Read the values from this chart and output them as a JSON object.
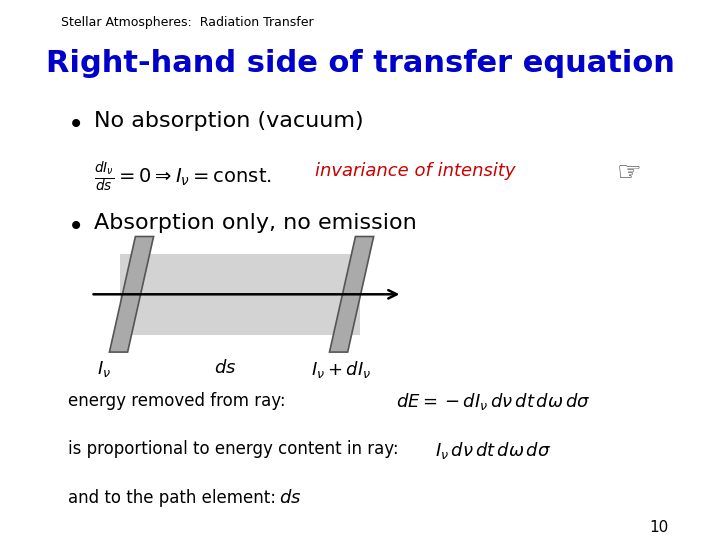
{
  "background_color": "#ffffff",
  "header_text": "Stellar Atmospheres:  Radiation Transfer",
  "header_fontsize": 9,
  "header_color": "#000000",
  "title": "Right-hand side of transfer equation",
  "title_fontsize": 22,
  "title_color": "#0000cc",
  "title_bold": true,
  "bullet1": "No absorption (vacuum)",
  "bullet1_fontsize": 16,
  "bullet2": "Absorption only, no emission",
  "bullet2_fontsize": 16,
  "invariance_text": "invariance of intensity",
  "invariance_color": "#cc0000",
  "invariance_fontsize": 13,
  "label_energy": "energy removed from ray:",
  "label_proportional": "is proportional to energy content in ray:",
  "label_path": "and to the path element:",
  "page_number": "10",
  "beam_fill": "#d3d3d3",
  "slab_fill": "#aaaaaa",
  "slab_edge": "#555555"
}
